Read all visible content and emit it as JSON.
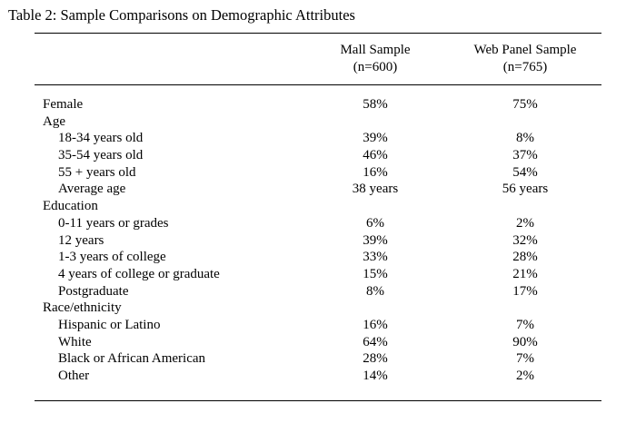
{
  "title": "Table 2: Sample Comparisons on Demographic Attributes",
  "columns": [
    {
      "line1": "Mall Sample",
      "line2": "(n=600)"
    },
    {
      "line1": "Web Panel Sample",
      "line2": "(n=765)"
    }
  ],
  "rows": [
    {
      "label": "Female",
      "mall": "58%",
      "web": "75%"
    },
    {
      "label": "Age",
      "mall": "",
      "web": ""
    },
    {
      "label": "18-34 years old",
      "mall": "39%",
      "web": "8%"
    },
    {
      "label": "35-54 years old",
      "mall": "46%",
      "web": "37%"
    },
    {
      "label": "55 + years old",
      "mall": "16%",
      "web": "54%"
    },
    {
      "label": "Average age",
      "mall": "38 years",
      "web": "56 years"
    },
    {
      "label": "Education",
      "mall": "",
      "web": ""
    },
    {
      "label": "0-11 years or grades",
      "mall": "6%",
      "web": "2%"
    },
    {
      "label": "12 years",
      "mall": "39%",
      "web": "32%"
    },
    {
      "label": "1-3 years of college",
      "mall": "33%",
      "web": "28%"
    },
    {
      "label": "4 years of college or graduate",
      "mall": "15%",
      "web": "21%"
    },
    {
      "label": "Postgraduate",
      "mall": "8%",
      "web": "17%"
    },
    {
      "label": "Race/ethnicity",
      "mall": "",
      "web": ""
    },
    {
      "label": "Hispanic or Latino",
      "mall": "16%",
      "web": "7%"
    },
    {
      "label": "White",
      "mall": "64%",
      "web": "90%"
    },
    {
      "label": "Black or African American",
      "mall": "28%",
      "web": "7%"
    },
    {
      "label": "Other",
      "mall": "14%",
      "web": "2%"
    }
  ]
}
